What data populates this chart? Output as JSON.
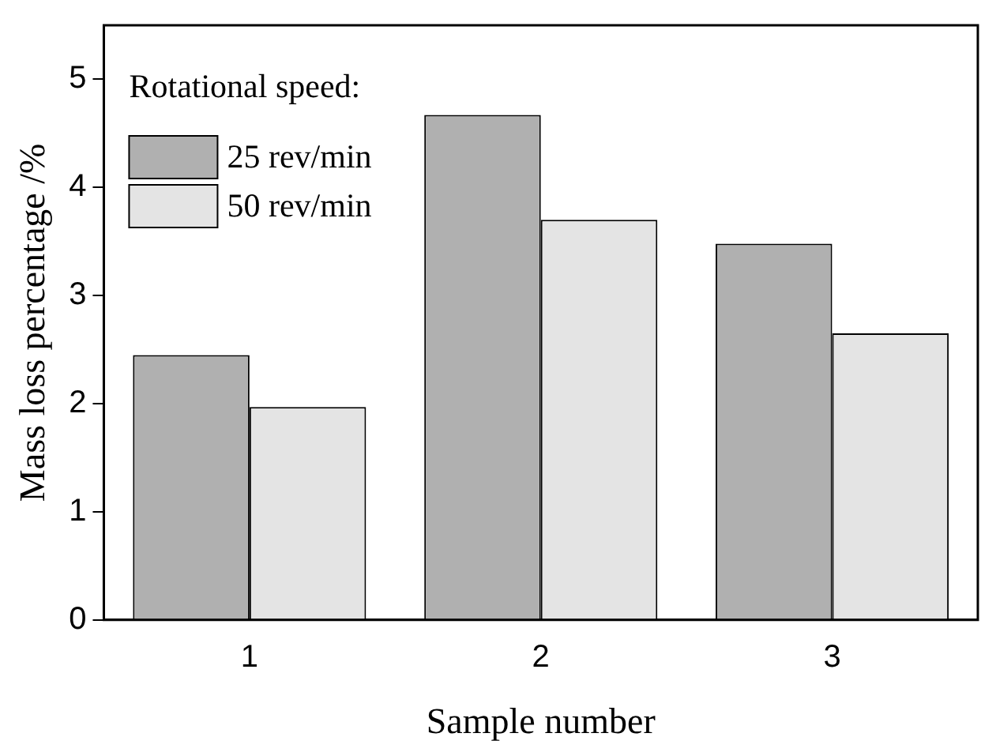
{
  "chart_data": {
    "type": "bar",
    "xlabel": "Sample number",
    "ylabel": "Mass loss percentage /%",
    "legend_title": "Rotational speed:",
    "categories": [
      "1",
      "2",
      "3"
    ],
    "series": [
      {
        "name": "25 rev/min",
        "color": "#b0b0b0",
        "values": [
          2.45,
          4.67,
          3.48
        ]
      },
      {
        "name": "50 rev/min",
        "color": "#e4e4e4",
        "values": [
          1.97,
          3.7,
          2.65
        ]
      }
    ],
    "ylim": [
      0,
      5.5
    ],
    "yticks": [
      0,
      1,
      2,
      3,
      4,
      5
    ],
    "grid": false,
    "legend": "top left"
  }
}
